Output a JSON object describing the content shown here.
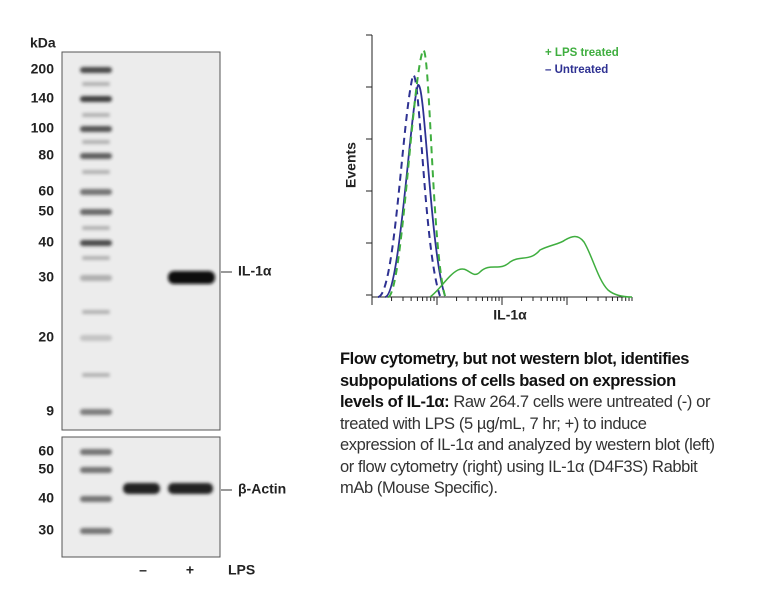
{
  "blot": {
    "unit_label": "kDa",
    "markers": [
      "200",
      "140",
      "100",
      "80",
      "60",
      "50",
      "40",
      "30",
      "20",
      "9"
    ],
    "band_label": "IL-1α",
    "actin_markers": [
      "60",
      "50",
      "40",
      "30"
    ],
    "actin_label": "β-Actin",
    "lanes": [
      "–",
      "+"
    ],
    "lane_title": "LPS"
  },
  "flow": {
    "y_label": "Events",
    "x_label": "IL-1α",
    "legend": [
      {
        "symbol": "+",
        "name": "LPS treated",
        "color": "#3fae3f"
      },
      {
        "symbol": "–",
        "name": "Untreated",
        "color": "#2e3192"
      }
    ]
  },
  "caption": {
    "bold": "Flow cytometry, but not western blot, identifies subpopulations of cells based on expression levels of IL-1α:",
    "text": "Raw 264.7 cells were untreated (-) or treated with LPS (5 µg/mL, 7 hr; +) to induce expression of IL-1α and analyzed by western blot (left) or flow cytometry (right) using IL-1α (D4F3S) Rabbit mAb (Mouse Specific)."
  }
}
